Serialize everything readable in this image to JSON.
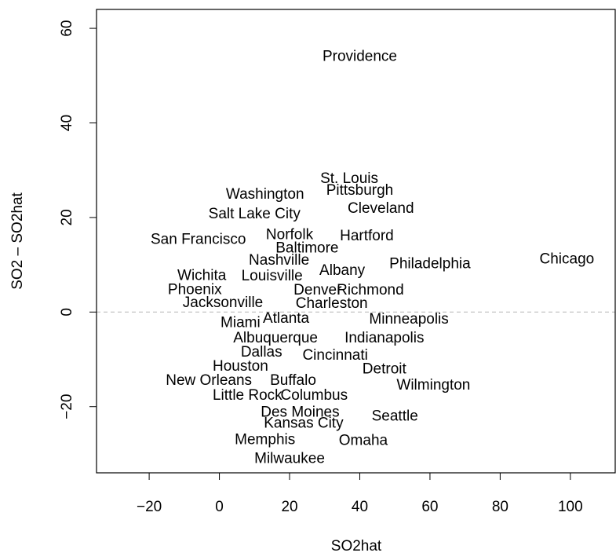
{
  "chart_data": {
    "type": "scatter",
    "title": "",
    "xlabel": "SO2hat",
    "ylabel": "SO2 – SO2hat",
    "xlim": [
      -35,
      113
    ],
    "ylim": [
      -34,
      64
    ],
    "x_ticks": [
      -20,
      0,
      20,
      40,
      60,
      80,
      100
    ],
    "y_ticks": [
      -20,
      0,
      20,
      40,
      60
    ],
    "x_tick_labels": [
      "−20",
      "0",
      "20",
      "40",
      "60",
      "80",
      "100"
    ],
    "y_tick_labels": [
      "−20",
      "0",
      "20",
      "40",
      "60"
    ],
    "reference_line": {
      "y": 0,
      "style": "dashed",
      "color": "#bebebe"
    },
    "grid": false,
    "points": [
      {
        "label": "Providence",
        "x": 40,
        "y": 54
      },
      {
        "label": "St. Louis",
        "x": 37,
        "y": 28.2
      },
      {
        "label": "Pittsburgh",
        "x": 40,
        "y": 25.7
      },
      {
        "label": "Washington",
        "x": 13,
        "y": 24.9
      },
      {
        "label": "Salt Lake City",
        "x": 10,
        "y": 20.7
      },
      {
        "label": "Cleveland",
        "x": 46,
        "y": 21.9
      },
      {
        "label": "San Francisco",
        "x": -6,
        "y": 15.3
      },
      {
        "label": "Norfolk",
        "x": 20,
        "y": 16.3
      },
      {
        "label": "Hartford",
        "x": 42,
        "y": 16.1
      },
      {
        "label": "Baltimore",
        "x": 25,
        "y": 13.5
      },
      {
        "label": "Nashville",
        "x": 17,
        "y": 10.9
      },
      {
        "label": "Philadelphia",
        "x": 60,
        "y": 10.2
      },
      {
        "label": "Chicago",
        "x": 99,
        "y": 11.2
      },
      {
        "label": "Albany",
        "x": 35,
        "y": 8.8
      },
      {
        "label": "Wichita",
        "x": -5,
        "y": 7.7
      },
      {
        "label": "Louisville",
        "x": 15,
        "y": 7.6
      },
      {
        "label": "Phoenix",
        "x": -7,
        "y": 4.7
      },
      {
        "label": "Denver",
        "x": 28,
        "y": 4.6
      },
      {
        "label": "Richmond",
        "x": 43,
        "y": 4.6
      },
      {
        "label": "Jacksonville",
        "x": 1,
        "y": 2.0
      },
      {
        "label": "Charleston",
        "x": 32,
        "y": 1.8
      },
      {
        "label": "Miami",
        "x": 6,
        "y": -2.3
      },
      {
        "label": "Atlanta",
        "x": 19,
        "y": -1.4
      },
      {
        "label": "Minneapolis",
        "x": 54,
        "y": -1.5
      },
      {
        "label": "Albuquerque",
        "x": 16,
        "y": -5.5
      },
      {
        "label": "Indianapolis",
        "x": 47,
        "y": -5.5
      },
      {
        "label": "Dallas",
        "x": 12,
        "y": -8.5
      },
      {
        "label": "Cincinnati",
        "x": 33,
        "y": -9.2
      },
      {
        "label": "Houston",
        "x": 6,
        "y": -11.5
      },
      {
        "label": "Detroit",
        "x": 47,
        "y": -12.1
      },
      {
        "label": "New Orleans",
        "x": -3,
        "y": -14.5
      },
      {
        "label": "Buffalo",
        "x": 21,
        "y": -14.5
      },
      {
        "label": "Wilmington",
        "x": 61,
        "y": -15.5
      },
      {
        "label": "Little Rock",
        "x": 8,
        "y": -17.6
      },
      {
        "label": "Columbus",
        "x": 27,
        "y": -17.6
      },
      {
        "label": "Des Moines",
        "x": 23,
        "y": -21.2
      },
      {
        "label": "Seattle",
        "x": 50,
        "y": -22.0
      },
      {
        "label": "Kansas City",
        "x": 24,
        "y": -23.5
      },
      {
        "label": "Memphis",
        "x": 13,
        "y": -27.0
      },
      {
        "label": "Omaha",
        "x": 41,
        "y": -27.2
      },
      {
        "label": "Milwaukee",
        "x": 20,
        "y": -31.0
      }
    ]
  }
}
